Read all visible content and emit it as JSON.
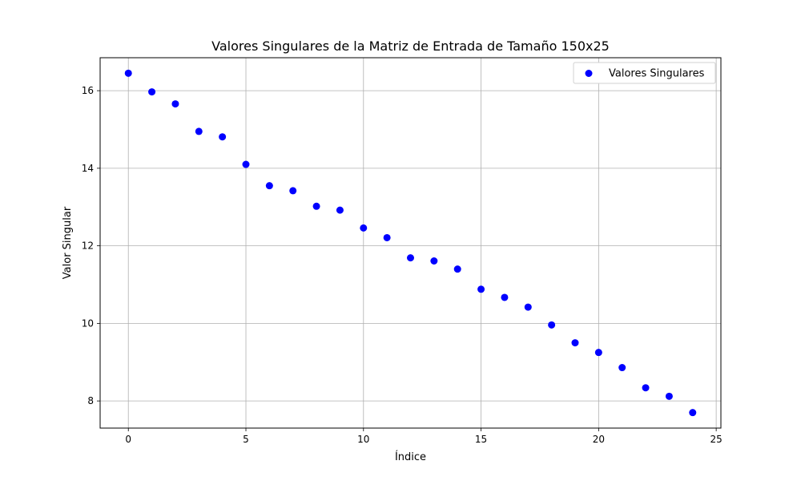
{
  "chart_data": {
    "type": "scatter",
    "title": "Valores Singulares de la Matriz de Entrada de Tamaño 150x25",
    "xlabel": "Índice",
    "ylabel": "Valor Singular",
    "xlim": [
      -1.2,
      25.2
    ],
    "ylim": [
      7.3,
      16.85
    ],
    "xticks": [
      0,
      5,
      10,
      15,
      20,
      25
    ],
    "yticks": [
      8,
      10,
      12,
      14,
      16
    ],
    "grid": true,
    "legend_position": "top-right",
    "series": [
      {
        "name": "Valores Singulares",
        "color": "#0000ff",
        "x": [
          0,
          1,
          2,
          3,
          4,
          5,
          6,
          7,
          8,
          9,
          10,
          11,
          12,
          13,
          14,
          15,
          16,
          17,
          18,
          19,
          20,
          21,
          22,
          23,
          24
        ],
        "y": [
          16.45,
          15.97,
          15.66,
          14.95,
          14.81,
          14.1,
          13.55,
          13.42,
          13.02,
          12.92,
          12.46,
          12.21,
          11.69,
          11.61,
          11.4,
          10.88,
          10.67,
          10.42,
          9.96,
          9.5,
          9.25,
          8.86,
          8.34,
          8.12,
          7.7
        ]
      }
    ]
  }
}
